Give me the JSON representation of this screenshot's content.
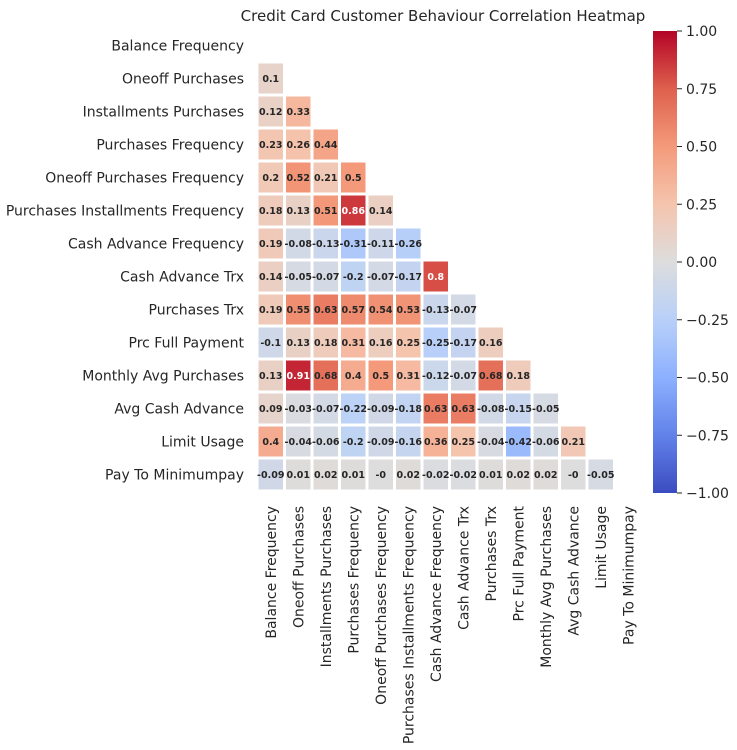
{
  "chart_data": {
    "type": "heatmap",
    "title": "Credit Card Customer Behaviour Correlation Heatmap",
    "labels": [
      "Balance Frequency",
      "Oneoff Purchases",
      "Installments Purchases",
      "Purchases Frequency",
      "Oneoff Purchases Frequency",
      "Purchases Installments Frequency",
      "Cash Advance Frequency",
      "Cash Advance Trx",
      "Purchases Trx",
      "Prc Full Payment",
      "Monthly Avg Purchases",
      "Avg Cash Advance",
      "Limit Usage",
      "Pay To Minimumpay"
    ],
    "mask": "upper-triangle-and-diagonal",
    "lower_triangle_values": [
      [],
      [
        "0.1"
      ],
      [
        "0.12",
        "0.33"
      ],
      [
        "0.23",
        "0.26",
        "0.44"
      ],
      [
        "0.2",
        "0.52",
        "0.21",
        "0.5"
      ],
      [
        "0.18",
        "0.13",
        "0.51",
        "0.86",
        "0.14"
      ],
      [
        "0.19",
        "-0.08",
        "-0.13",
        "-0.31",
        "-0.11",
        "-0.26"
      ],
      [
        "0.14",
        "-0.05",
        "-0.07",
        "-0.2",
        "-0.07",
        "-0.17",
        "0.8"
      ],
      [
        "0.19",
        "0.55",
        "0.63",
        "0.57",
        "0.54",
        "0.53",
        "-0.13",
        "-0.07"
      ],
      [
        "-0.1",
        "0.13",
        "0.18",
        "0.31",
        "0.16",
        "0.25",
        "-0.25",
        "-0.17",
        "0.16"
      ],
      [
        "0.13",
        "0.91",
        "0.68",
        "0.4",
        "0.5",
        "0.31",
        "-0.12",
        "-0.07",
        "0.68",
        "0.18"
      ],
      [
        "0.09",
        "-0.03",
        "-0.07",
        "-0.22",
        "-0.09",
        "-0.18",
        "0.63",
        "0.63",
        "-0.08",
        "-0.15",
        "-0.05"
      ],
      [
        "0.4",
        "-0.04",
        "-0.06",
        "-0.2",
        "-0.09",
        "-0.16",
        "0.36",
        "0.25",
        "-0.04",
        "-0.42",
        "-0.06",
        "0.21"
      ],
      [
        "-0.09",
        "0.01",
        "0.02",
        "0.01",
        "-0",
        "0.02",
        "-0.02",
        "-0.02",
        "0.01",
        "0.02",
        "0.02",
        "-0",
        "-0.05"
      ]
    ],
    "colormap": "coolwarm",
    "vmin": -1,
    "vmax": 1,
    "colorbar_ticks": [
      "1.00",
      "0.75",
      "0.50",
      "0.25",
      "0.00",
      "−0.25",
      "−0.50",
      "−0.75",
      "−1.00"
    ]
  }
}
